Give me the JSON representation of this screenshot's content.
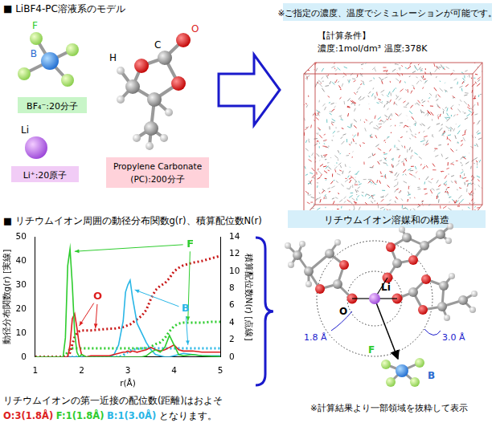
{
  "model_section": {
    "title": "■ LiBF4-PC溶液系のモデル",
    "bf4": {
      "f_label": "F",
      "b_label": "B",
      "label": "BF₄⁻:20分子"
    },
    "li": {
      "atom_label": "Li",
      "label": "Li⁺:20原子"
    },
    "pc": {
      "h_label": "H",
      "c_label": "C",
      "o_label": "O",
      "label_lines": [
        "Propylene Carbonate",
        "(PC):200分子"
      ]
    }
  },
  "simulation": {
    "note": "※ご指定の濃度、温度でシミュレーションが可能です。",
    "conditions_title": "【計算条件】",
    "conditions": "濃度:1mol/dm³  温度:378K"
  },
  "chart_section_title": "■ リチウムイオン周囲の動径分布関数g(r)、積算配位数N(r)",
  "chart_data": {
    "type": "line",
    "x_label": "r(Å)",
    "y_label": "動径分布関数g(r) [実線]",
    "y2_label": "積算配位数N(r) [点線]",
    "x": [
      1.0,
      1.5,
      1.6,
      1.65,
      1.7,
      1.75,
      1.8,
      1.85,
      1.9,
      1.95,
      2.0,
      2.1,
      2.2,
      2.4,
      2.6,
      2.7,
      2.8,
      2.9,
      2.95,
      3.0,
      3.05,
      3.1,
      3.2,
      3.3,
      3.4,
      3.5,
      3.6,
      3.7,
      3.8,
      3.9,
      4.0,
      4.1,
      4.2,
      4.4,
      4.6,
      4.8,
      5.0
    ],
    "xlim": [
      1,
      5
    ],
    "xticks": [
      1,
      2,
      3,
      4,
      5
    ],
    "ylim": [
      0,
      50
    ],
    "yticks": [
      0,
      10,
      20,
      30,
      40,
      50
    ],
    "y2lim": [
      0,
      14
    ],
    "y2ticks": [
      0,
      2,
      4,
      6,
      8,
      10,
      12,
      14
    ],
    "grid": false,
    "series": [
      {
        "name": "F",
        "color": "#2ecc2e",
        "line_style": "solid",
        "values": [
          0,
          0,
          0,
          8,
          38,
          45,
          30,
          10,
          2,
          0,
          1,
          0,
          0,
          0,
          0,
          0,
          0,
          0,
          0,
          0,
          0,
          0,
          0,
          0,
          0.5,
          2,
          3,
          2,
          4,
          9,
          5,
          1,
          0.5,
          1,
          0.5,
          0.3,
          0.2
        ]
      },
      {
        "name": "O",
        "color": "#dd1f1f",
        "line_style": "solid",
        "values": [
          0,
          0,
          0,
          0,
          0,
          5,
          16,
          18,
          12,
          5,
          1,
          0,
          0.5,
          0.5,
          0.5,
          1,
          1.5,
          2,
          2,
          2.5,
          2,
          2.5,
          2,
          2.5,
          3,
          4,
          3,
          2.5,
          3,
          4,
          5,
          3,
          2.5,
          2.5,
          2,
          2,
          2
        ]
      },
      {
        "name": "B",
        "color": "#29b6e6",
        "line_style": "solid",
        "values": [
          0,
          0,
          0,
          0,
          0,
          0,
          0,
          0,
          0,
          0,
          0,
          0,
          0,
          0,
          0,
          1,
          5,
          15,
          27,
          30,
          32,
          25,
          14,
          10,
          6,
          3,
          1,
          0.5,
          0,
          0,
          0.5,
          1,
          1.5,
          1,
          0.5,
          0.5,
          0.5
        ]
      },
      {
        "name": "O",
        "color": "#c81414",
        "line_style": "dotted",
        "axis": "y2",
        "values": [
          0,
          0,
          0,
          0,
          0,
          0.5,
          1.5,
          2.3,
          2.8,
          3.0,
          3.1,
          3.1,
          3.1,
          3.2,
          3.3,
          3.3,
          3.4,
          3.5,
          3.6,
          3.7,
          3.8,
          4.0,
          4.4,
          4.8,
          5.5,
          6.8,
          7.8,
          8.3,
          8.6,
          9.2,
          10.0,
          10.4,
          10.7,
          11.0,
          11.2,
          11.5,
          11.8
        ]
      },
      {
        "name": "F",
        "color": "#2ecc2e",
        "line_style": "dotted",
        "axis": "y2",
        "values": [
          0,
          0,
          0,
          0.2,
          0.6,
          0.9,
          1,
          1,
          1,
          1,
          1,
          1,
          1,
          1,
          1,
          1,
          1,
          1,
          1,
          1,
          1,
          1,
          1,
          1,
          1.05,
          1.2,
          1.5,
          1.7,
          2.2,
          3,
          3.6,
          3.9,
          4,
          4,
          4,
          4.1,
          4.1
        ]
      },
      {
        "name": "B",
        "color": "#29b6e6",
        "line_style": "dotted",
        "axis": "y2",
        "values": [
          0,
          0,
          0,
          0,
          0,
          0,
          0,
          0,
          0,
          0,
          0,
          0,
          0,
          0,
          0,
          0,
          0,
          0.2,
          0.4,
          0.6,
          0.75,
          0.85,
          0.95,
          1,
          1,
          1,
          1,
          1,
          1,
          1,
          1,
          1,
          1,
          1,
          1,
          1,
          1
        ]
      }
    ],
    "annotations": [
      {
        "text": "F",
        "color": "#2ecc2e",
        "x": 4.35,
        "y": 47,
        "arrows": [
          {
            "x": 1.85,
            "y": 44
          },
          {
            "x": 4.3,
            "y": 15
          }
        ]
      },
      {
        "text": "O",
        "color": "#dd1f1f",
        "x": 2.35,
        "y": 25,
        "arrows": [
          {
            "x": 1.95,
            "y": 13
          },
          {
            "x": 2.3,
            "y": 12
          }
        ]
      },
      {
        "text": "B",
        "color": "#29b6e6",
        "x": 4.25,
        "y": 20,
        "arrows": [
          {
            "x": 3.15,
            "y": 28
          },
          {
            "x": 4.3,
            "y": 5
          }
        ]
      }
    ]
  },
  "summary": {
    "lead": "リチウムイオンの第一近接の配位数(距離)はおよそ",
    "items": [
      {
        "text": "O:3(1.8Å)",
        "color": "#dd1f1f"
      },
      {
        "text": "F:1(1.8Å)",
        "color": "#2ecc2e"
      },
      {
        "text": "B:1(3.0Å)",
        "color": "#29b6e6"
      }
    ],
    "tail": "となります。"
  },
  "solvation": {
    "title": "リチウムイオン溶媒和の構造",
    "li_label": "Li",
    "o_label": "O",
    "f_label": "F",
    "b_label": "B",
    "inner_distance": "1.8 Å",
    "outer_distance": "3.0 Å",
    "note": "※計算結果より一部領域を抜粋して表示"
  }
}
